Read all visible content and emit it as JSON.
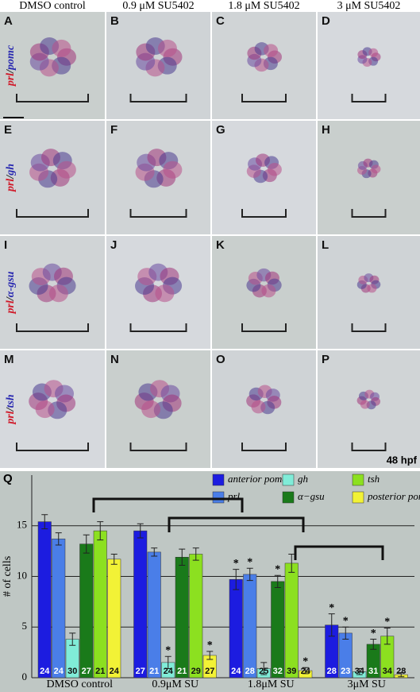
{
  "figure": {
    "columns": [
      "DMSO control",
      "0.9 μM SU5402",
      "1.8 μM SU5402",
      "3 μM SU5402"
    ],
    "rows": [
      {
        "marker1": "prl",
        "sep": "/",
        "marker2": "pomc"
      },
      {
        "marker1": "prl",
        "sep": "/",
        "marker2": "gh"
      },
      {
        "marker1": "prl",
        "sep": "/",
        "marker2": "α-gsu"
      },
      {
        "marker1": "prl",
        "sep": "/",
        "marker2": "tsh"
      }
    ],
    "panel_letters": [
      "A",
      "B",
      "C",
      "D",
      "E",
      "F",
      "G",
      "H",
      "I",
      "J",
      "K",
      "L",
      "M",
      "N",
      "O",
      "P"
    ],
    "stage": "48 hpf",
    "chart_letter": "Q"
  },
  "chart_data": {
    "type": "bar",
    "y_label": "# of cells",
    "categories": [
      "DMSO control",
      "0.9μM SU",
      "1.8μM SU",
      "3μM SU"
    ],
    "ylim": [
      0,
      20
    ],
    "yticks": [
      0,
      5,
      10,
      15
    ],
    "grid": true,
    "series": [
      {
        "name": "anterior pomc",
        "color": "#1c1ce0",
        "values": [
          15.4,
          14.5,
          9.7,
          5.2
        ],
        "errors": [
          0.7,
          0.7,
          1.0,
          1.1
        ],
        "n": [
          "24",
          "27",
          "24",
          "28"
        ],
        "sig": [
          null,
          null,
          "*",
          "*"
        ]
      },
      {
        "name": "prl",
        "color": "#4a7ee8",
        "values": [
          13.7,
          12.4,
          10.2,
          4.4
        ],
        "errors": [
          0.6,
          0.4,
          0.6,
          0.6
        ],
        "n": [
          "24",
          "21",
          "28",
          "23"
        ],
        "sig": [
          null,
          null,
          "*",
          "*"
        ]
      },
      {
        "name": "gh",
        "color": "#80ecd8",
        "values": [
          3.8,
          1.5,
          0.9,
          0.6
        ],
        "errors": [
          0.6,
          0.6,
          0.6,
          0.3
        ],
        "n": [
          "30",
          "24",
          "25",
          "34"
        ],
        "sig": [
          null,
          "*",
          null,
          null
        ]
      },
      {
        "name": "α−gsu",
        "color": "#1a7a1a",
        "values": [
          13.2,
          11.9,
          9.5,
          3.3
        ],
        "errors": [
          0.9,
          0.8,
          0.6,
          0.5
        ],
        "n": [
          "27",
          "21",
          "32",
          "31"
        ],
        "sig": [
          null,
          null,
          "*",
          "*"
        ]
      },
      {
        "name": "tsh",
        "color": "#8ce020",
        "values": [
          14.5,
          12.2,
          11.3,
          4.1
        ],
        "errors": [
          0.9,
          0.6,
          0.9,
          0.8
        ],
        "n": [
          "21",
          "29",
          "39",
          "34"
        ],
        "sig": [
          null,
          null,
          null,
          "*"
        ]
      },
      {
        "name": "posterior pomc",
        "color": "#f2f236",
        "values": [
          11.7,
          2.2,
          0.7,
          0.3
        ],
        "errors": [
          0.5,
          0.4,
          0.3,
          0.2
        ],
        "n": [
          "24",
          "27",
          "24",
          "28"
        ],
        "sig": [
          null,
          "*",
          "*",
          null
        ]
      }
    ]
  }
}
